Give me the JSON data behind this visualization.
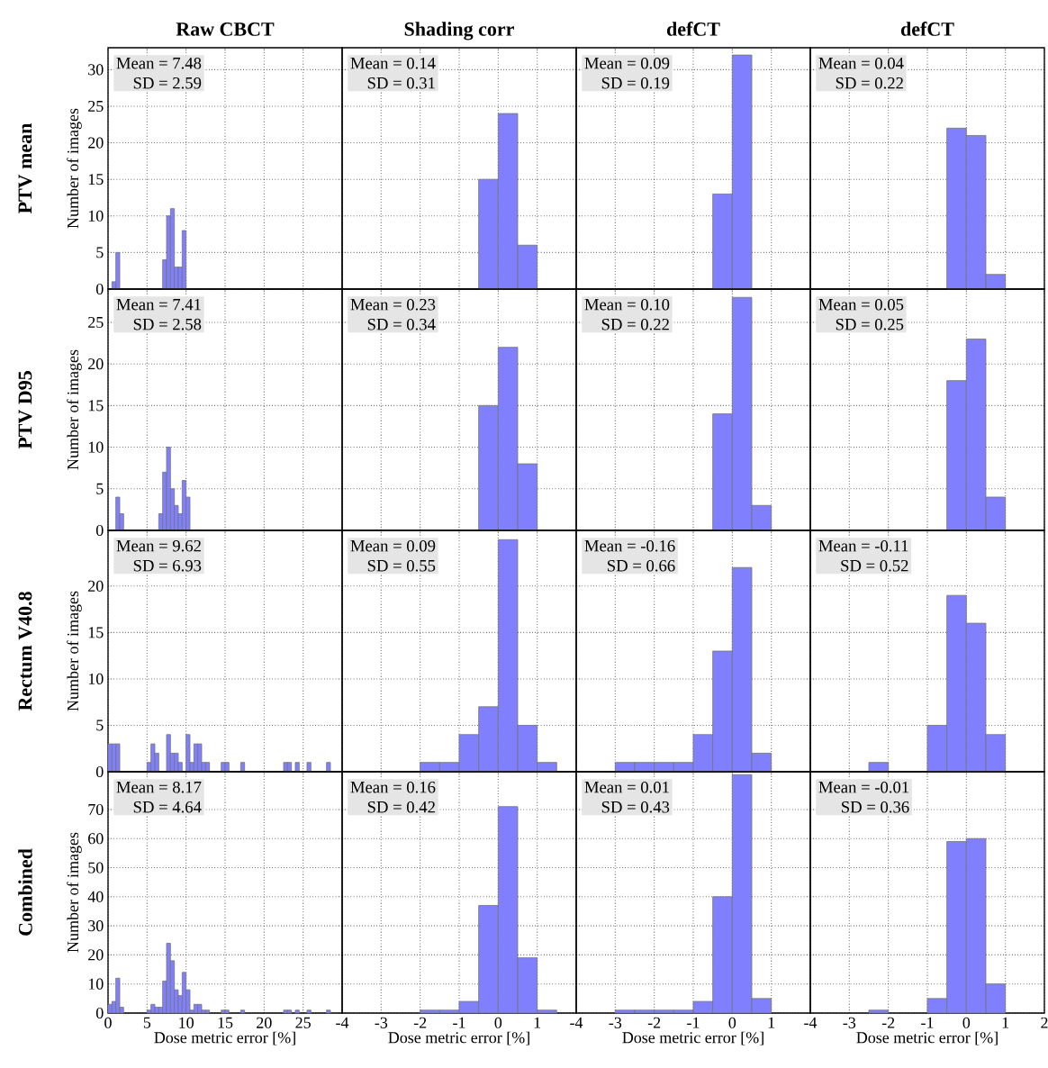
{
  "chart_data": [
    {
      "type": "histogram",
      "title": "Raw CBCT",
      "subtitle": "PTV mean",
      "ylabel": "Number of images",
      "bins": [
        0,
        0.5,
        1,
        1.5,
        2,
        2.5,
        3,
        3.5,
        4,
        4.5,
        5,
        5.5,
        6,
        6.5,
        7,
        7.5,
        8,
        8.5,
        9,
        9.5,
        10
      ],
      "values": [
        0,
        1,
        5,
        0,
        0,
        0,
        0,
        0,
        0,
        0,
        0,
        0,
        0,
        0,
        4,
        10,
        11,
        3,
        3,
        8
      ],
      "color": "#8080ff",
      "xlim": [
        0,
        30
      ],
      "xticks": [
        0,
        5,
        10,
        15,
        20,
        25
      ],
      "ylim": [
        0,
        33
      ],
      "yticks": [
        0,
        5,
        10,
        15,
        20,
        25,
        30
      ],
      "grid": true,
      "tick_labels": "y",
      "annotations": [
        "Mean = 7.48",
        "SD = 2.59"
      ]
    },
    {
      "type": "histogram",
      "title": "Shading corr",
      "bins": [
        -3,
        -2.5,
        -2,
        -1.5,
        -1,
        -0.5,
        0,
        0.5,
        1,
        1.5
      ],
      "values": [
        0,
        0,
        0,
        0,
        0,
        15,
        24,
        6,
        0
      ],
      "color": "#8080ff",
      "xlim": [
        -4,
        2
      ],
      "xticks": [
        -4,
        -3,
        -2,
        -1,
        0,
        1
      ],
      "ylim": [
        0,
        33
      ],
      "yticks": [
        0,
        5,
        10,
        15,
        20,
        25,
        30
      ],
      "grid": true,
      "tick_labels": false,
      "annotations": [
        "Mean = 0.14",
        "SD = 0.31"
      ]
    },
    {
      "type": "histogram",
      "title": "defCT",
      "bins": [
        -3,
        -2.5,
        -2,
        -1.5,
        -1,
        -0.5,
        0,
        0.5,
        1,
        1.5
      ],
      "values": [
        0,
        0,
        0,
        0,
        0,
        13,
        32,
        0,
        0
      ],
      "color": "#8080ff",
      "xlim": [
        -4,
        2
      ],
      "xticks": [
        -4,
        -3,
        -2,
        -1,
        0,
        1
      ],
      "ylim": [
        0,
        33
      ],
      "yticks": [
        0,
        5,
        10,
        15,
        20,
        25,
        30
      ],
      "grid": true,
      "tick_labels": false,
      "annotations": [
        "Mean = 0.09",
        "SD = 0.19"
      ]
    },
    {
      "type": "histogram",
      "title": "defCT",
      "bins": [
        -3,
        -2.5,
        -2,
        -1.5,
        -1,
        -0.5,
        0,
        0.5,
        1,
        1.5
      ],
      "values": [
        0,
        0,
        0,
        0,
        0,
        22,
        21,
        2,
        0
      ],
      "color": "#8080ff",
      "xlim": [
        -4,
        2
      ],
      "xticks": [
        -4,
        -3,
        -2,
        -1,
        0,
        1,
        2
      ],
      "ylim": [
        0,
        33
      ],
      "yticks": [
        0,
        5,
        10,
        15,
        20,
        25,
        30
      ],
      "grid": true,
      "tick_labels": false,
      "annotations": [
        "Mean = 0.04",
        "SD = 0.22"
      ]
    },
    {
      "type": "histogram",
      "subtitle": "PTV D95",
      "ylabel": "Number of images",
      "bins": [
        0,
        0.5,
        1,
        1.5,
        2,
        2.5,
        3,
        3.5,
        4,
        4.5,
        5,
        5.5,
        6,
        6.5,
        7,
        7.5,
        8,
        8.5,
        9,
        9.5,
        10,
        10.5
      ],
      "values": [
        0,
        0,
        4,
        2,
        0,
        0,
        0,
        0,
        0,
        0,
        0,
        0,
        0,
        2,
        7,
        10,
        5,
        3,
        2,
        6,
        4
      ],
      "color": "#8080ff",
      "xlim": [
        0,
        30
      ],
      "xticks": [
        0,
        5,
        10,
        15,
        20,
        25
      ],
      "ylim": [
        0,
        29
      ],
      "yticks": [
        0,
        5,
        10,
        15,
        20,
        25
      ],
      "grid": true,
      "tick_labels": "y",
      "annotations": [
        "Mean = 7.41",
        "SD = 2.58"
      ]
    },
    {
      "type": "histogram",
      "bins": [
        -3,
        -2.5,
        -2,
        -1.5,
        -1,
        -0.5,
        0,
        0.5,
        1,
        1.5
      ],
      "values": [
        0,
        0,
        0,
        0,
        0,
        15,
        22,
        8,
        0
      ],
      "color": "#8080ff",
      "xlim": [
        -4,
        2
      ],
      "xticks": [
        -4,
        -3,
        -2,
        -1,
        0,
        1
      ],
      "ylim": [
        0,
        29
      ],
      "yticks": [
        0,
        5,
        10,
        15,
        20,
        25
      ],
      "grid": true,
      "tick_labels": false,
      "annotations": [
        "Mean = 0.23",
        "SD = 0.34"
      ]
    },
    {
      "type": "histogram",
      "bins": [
        -3,
        -2.5,
        -2,
        -1.5,
        -1,
        -0.5,
        0,
        0.5,
        1,
        1.5
      ],
      "values": [
        0,
        0,
        0,
        0,
        0,
        14,
        28,
        3,
        0
      ],
      "color": "#8080ff",
      "xlim": [
        -4,
        2
      ],
      "xticks": [
        -4,
        -3,
        -2,
        -1,
        0,
        1
      ],
      "ylim": [
        0,
        29
      ],
      "yticks": [
        0,
        5,
        10,
        15,
        20,
        25
      ],
      "grid": true,
      "tick_labels": false,
      "annotations": [
        "Mean = 0.10",
        "SD = 0.22"
      ]
    },
    {
      "type": "histogram",
      "bins": [
        -3,
        -2.5,
        -2,
        -1.5,
        -1,
        -0.5,
        0,
        0.5,
        1,
        1.5
      ],
      "values": [
        0,
        0,
        0,
        0,
        0,
        18,
        23,
        4,
        0
      ],
      "color": "#8080ff",
      "xlim": [
        -4,
        2
      ],
      "xticks": [
        -4,
        -3,
        -2,
        -1,
        0,
        1,
        2
      ],
      "ylim": [
        0,
        29
      ],
      "yticks": [
        0,
        5,
        10,
        15,
        20,
        25
      ],
      "grid": true,
      "tick_labels": false,
      "annotations": [
        "Mean = 0.05",
        "SD = 0.25"
      ]
    },
    {
      "type": "histogram",
      "subtitle": "Rectum V40.8",
      "ylabel": "Number of images",
      "bins": [
        0,
        0.5,
        1,
        1.5,
        2,
        2.5,
        3,
        3.5,
        4,
        4.5,
        5,
        5.5,
        6,
        6.5,
        7,
        7.5,
        8,
        8.5,
        9,
        9.5,
        10,
        10.5,
        11,
        11.5,
        12,
        12.5,
        13,
        13.5,
        14,
        14.5,
        15,
        15.5,
        16,
        16.5,
        17,
        17.5,
        18,
        18.5,
        19,
        19.5,
        20,
        20.5,
        21,
        21.5,
        22,
        22.5,
        23,
        23.5,
        24,
        24.5,
        25,
        25.5,
        26,
        26.5,
        27,
        27.5,
        28,
        28.5
      ],
      "values": [
        3,
        3,
        3,
        0,
        0,
        0,
        0,
        0,
        0,
        0,
        1,
        3,
        2,
        0,
        0,
        4,
        2,
        2,
        1,
        0,
        4,
        1,
        3,
        3,
        1,
        1,
        0,
        0,
        0,
        1,
        1,
        0,
        0,
        0,
        1,
        0,
        0,
        0,
        0,
        0,
        0,
        0,
        0,
        0,
        0,
        1,
        1,
        0,
        1,
        0,
        0,
        1,
        0,
        0,
        0,
        0,
        1
      ],
      "color": "#8080ff",
      "xlim": [
        0,
        30
      ],
      "xticks": [
        0,
        5,
        10,
        15,
        20,
        25
      ],
      "ylim": [
        0,
        26
      ],
      "yticks": [
        0,
        5,
        10,
        15,
        20
      ],
      "grid": true,
      "tick_labels": "y",
      "annotations": [
        "Mean = 9.62",
        "SD = 6.93"
      ]
    },
    {
      "type": "histogram",
      "bins": [
        -3,
        -2.5,
        -2,
        -1.5,
        -1,
        -0.5,
        0,
        0.5,
        1,
        1.5
      ],
      "values": [
        0,
        0,
        1,
        1,
        4,
        7,
        25,
        5,
        1
      ],
      "color": "#8080ff",
      "xlim": [
        -4,
        2
      ],
      "xticks": [
        -4,
        -3,
        -2,
        -1,
        0,
        1
      ],
      "ylim": [
        0,
        26
      ],
      "yticks": [
        0,
        5,
        10,
        15,
        20
      ],
      "grid": true,
      "tick_labels": false,
      "annotations": [
        "Mean = 0.09",
        "SD = 0.55"
      ]
    },
    {
      "type": "histogram",
      "bins": [
        -3,
        -2.5,
        -2,
        -1.5,
        -1,
        -0.5,
        0,
        0.5,
        1,
        1.5
      ],
      "values": [
        1,
        1,
        1,
        1,
        4,
        13,
        22,
        2,
        0
      ],
      "color": "#8080ff",
      "xlim": [
        -4,
        2
      ],
      "xticks": [
        -4,
        -3,
        -2,
        -1,
        0,
        1
      ],
      "ylim": [
        0,
        26
      ],
      "yticks": [
        0,
        5,
        10,
        15,
        20
      ],
      "grid": true,
      "tick_labels": false,
      "annotations": [
        "Mean = -0.16",
        "SD = 0.66"
      ]
    },
    {
      "type": "histogram",
      "bins": [
        -3,
        -2.5,
        -2,
        -1.5,
        -1,
        -0.5,
        0,
        0.5,
        1,
        1.5
      ],
      "values": [
        0,
        1,
        0,
        0,
        5,
        19,
        16,
        4,
        0
      ],
      "color": "#8080ff",
      "xlim": [
        -4,
        2
      ],
      "xticks": [
        -4,
        -3,
        -2,
        -1,
        0,
        1,
        2
      ],
      "ylim": [
        0,
        26
      ],
      "yticks": [
        0,
        5,
        10,
        15,
        20
      ],
      "grid": true,
      "tick_labels": false,
      "annotations": [
        "Mean = -0.11",
        "SD = 0.52"
      ]
    },
    {
      "type": "histogram",
      "subtitle": "Combined",
      "ylabel": "Number of images",
      "xlabel": "Dose metric error [%]",
      "bins": [
        0,
        0.5,
        1,
        1.5,
        2,
        2.5,
        3,
        3.5,
        4,
        4.5,
        5,
        5.5,
        6,
        6.5,
        7,
        7.5,
        8,
        8.5,
        9,
        9.5,
        10,
        10.5,
        11,
        11.5,
        12,
        12.5,
        13,
        13.5,
        14,
        14.5,
        15,
        15.5,
        16,
        16.5,
        17,
        17.5,
        18,
        18.5,
        19,
        19.5,
        20,
        20.5,
        21,
        21.5,
        22,
        22.5,
        23,
        23.5,
        24,
        24.5,
        25,
        25.5,
        26,
        26.5,
        27,
        27.5,
        28,
        28.5
      ],
      "values": [
        3,
        4,
        12,
        2,
        0,
        0,
        0,
        0,
        0,
        0,
        1,
        3,
        2,
        2,
        11,
        24,
        18,
        8,
        6,
        14,
        8,
        1,
        3,
        3,
        1,
        1,
        0,
        0,
        0,
        1,
        1,
        0,
        0,
        0,
        1,
        0,
        0,
        0,
        0,
        0,
        0,
        0,
        0,
        0,
        0,
        1,
        1,
        0,
        1,
        0,
        0,
        1,
        0,
        0,
        0,
        0,
        1
      ],
      "color": "#8080ff",
      "xlim": [
        0,
        30
      ],
      "xticks": [
        0,
        5,
        10,
        15,
        20,
        25
      ],
      "ylim": [
        0,
        83
      ],
      "yticks": [
        0,
        10,
        20,
        30,
        40,
        50,
        60,
        70
      ],
      "grid": true,
      "annotations": [
        "Mean = 8.17",
        "SD = 4.64"
      ]
    },
    {
      "type": "histogram",
      "xlabel": "Dose metric error [%]",
      "bins": [
        -3,
        -2.5,
        -2,
        -1.5,
        -1,
        -0.5,
        0,
        0.5,
        1,
        1.5
      ],
      "values": [
        0,
        0,
        1,
        1,
        4,
        37,
        71,
        19,
        1
      ],
      "color": "#8080ff",
      "xlim": [
        -4,
        2
      ],
      "xticks": [
        -4,
        -3,
        -2,
        -1,
        0,
        1
      ],
      "ylim": [
        0,
        83
      ],
      "yticks": [
        0,
        10,
        20,
        30,
        40,
        50,
        60,
        70
      ],
      "grid": true,
      "tick_labels": "x",
      "annotations": [
        "Mean = 0.16",
        "SD = 0.42"
      ]
    },
    {
      "type": "histogram",
      "xlabel": "Dose metric error [%]",
      "bins": [
        -3,
        -2.5,
        -2,
        -1.5,
        -1,
        -0.5,
        0,
        0.5,
        1,
        1.5
      ],
      "values": [
        1,
        1,
        1,
        1,
        4,
        40,
        82,
        5,
        0
      ],
      "color": "#8080ff",
      "xlim": [
        -4,
        2
      ],
      "xticks": [
        -4,
        -3,
        -2,
        -1,
        0,
        1
      ],
      "ylim": [
        0,
        83
      ],
      "yticks": [
        0,
        10,
        20,
        30,
        40,
        50,
        60,
        70
      ],
      "grid": true,
      "tick_labels": "x",
      "annotations": [
        "Mean = 0.01",
        "SD = 0.43"
      ]
    },
    {
      "type": "histogram",
      "xlabel": "Dose metric error [%]",
      "bins": [
        -3,
        -2.5,
        -2,
        -1.5,
        -1,
        -0.5,
        0,
        0.5,
        1,
        1.5
      ],
      "values": [
        0,
        1,
        0,
        0,
        5,
        59,
        60,
        10,
        0
      ],
      "color": "#8080ff",
      "xlim": [
        -4,
        2
      ],
      "xticks": [
        -4,
        -3,
        -2,
        -1,
        0,
        1,
        2
      ],
      "ylim": [
        0,
        83
      ],
      "yticks": [
        0,
        10,
        20,
        30,
        40,
        50,
        60,
        70
      ],
      "grid": true,
      "tick_labels": "x",
      "annotations": [
        "Mean = -0.01",
        "SD = 0.36"
      ]
    }
  ]
}
